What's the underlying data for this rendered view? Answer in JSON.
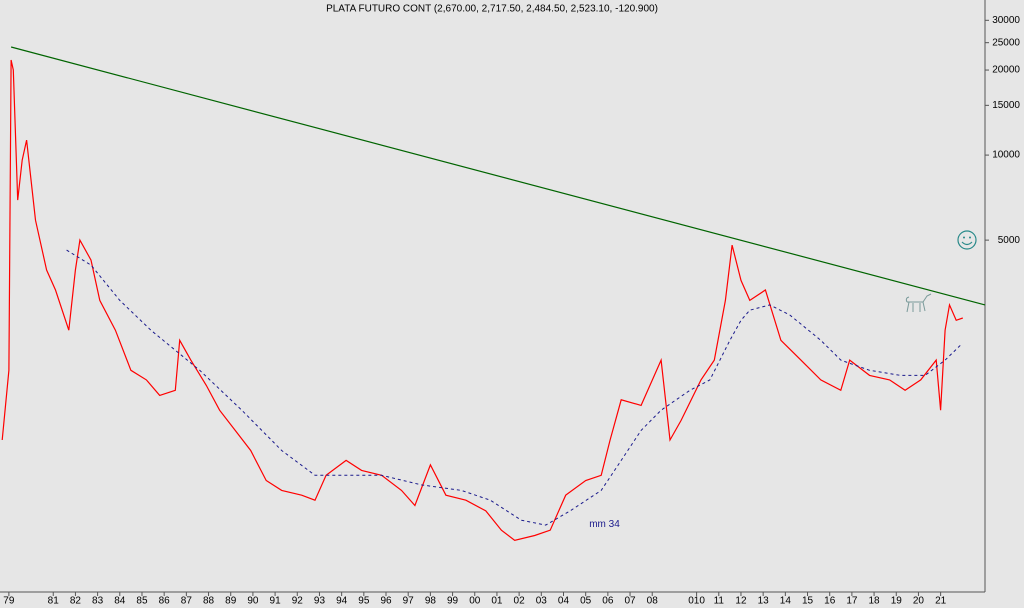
{
  "chart_data": {
    "type": "line",
    "title": "PLATA FUTURO CONT (2,670.00, 2,717.50, 2,484.50, 2,523.10, -120.900)",
    "log_scale": true,
    "grid": false,
    "xlim": [
      1978.6,
      2023.0
    ],
    "ylim": [
      284,
      35400
    ],
    "yticks": [
      5000,
      10000,
      15000,
      20000,
      25000,
      30000
    ],
    "xticks": [
      {
        "value": 1979,
        "label": "79"
      },
      {
        "value": 1981,
        "label": "81"
      },
      {
        "value": 1982,
        "label": "82"
      },
      {
        "value": 1983,
        "label": "83"
      },
      {
        "value": 1984,
        "label": "84"
      },
      {
        "value": 1985,
        "label": "85"
      },
      {
        "value": 1986,
        "label": "86"
      },
      {
        "value": 1987,
        "label": "87"
      },
      {
        "value": 1988,
        "label": "88"
      },
      {
        "value": 1989,
        "label": "89"
      },
      {
        "value": 1990,
        "label": "90"
      },
      {
        "value": 1991,
        "label": "91"
      },
      {
        "value": 1992,
        "label": "92"
      },
      {
        "value": 1993,
        "label": "93"
      },
      {
        "value": 1994,
        "label": "94"
      },
      {
        "value": 1995,
        "label": "95"
      },
      {
        "value": 1996,
        "label": "96"
      },
      {
        "value": 1997,
        "label": "97"
      },
      {
        "value": 1998,
        "label": "98"
      },
      {
        "value": 1999,
        "label": "99"
      },
      {
        "value": 2000,
        "label": "00"
      },
      {
        "value": 2001,
        "label": "01"
      },
      {
        "value": 2002,
        "label": "02"
      },
      {
        "value": 2003,
        "label": "03"
      },
      {
        "value": 2004,
        "label": "04"
      },
      {
        "value": 2005,
        "label": "05"
      },
      {
        "value": 2006,
        "label": "06"
      },
      {
        "value": 2007,
        "label": "07"
      },
      {
        "value": 2008,
        "label": "08"
      },
      {
        "value": 2010,
        "label": "010"
      },
      {
        "value": 2011,
        "label": "11"
      },
      {
        "value": 2012,
        "label": "12"
      },
      {
        "value": 2013,
        "label": "13"
      },
      {
        "value": 2014,
        "label": "14"
      },
      {
        "value": 2015,
        "label": "15"
      },
      {
        "value": 2016,
        "label": "16"
      },
      {
        "value": 2017,
        "label": "17"
      },
      {
        "value": 2018,
        "label": "18"
      },
      {
        "value": 2019,
        "label": "19"
      },
      {
        "value": 2020,
        "label": "20"
      },
      {
        "value": 2021,
        "label": "21"
      }
    ],
    "series": [
      {
        "color": "#ff0000",
        "x": [
          1978.7,
          1979.0,
          1979.1,
          1979.2,
          1979.4,
          1979.6,
          1979.8,
          1980.2,
          1980.7,
          1981.1,
          1981.7,
          1982.0,
          1982.2,
          1982.7,
          1983.1,
          1983.8,
          1984.5,
          1985.2,
          1985.8,
          1986.5,
          1986.7,
          1987.2,
          1987.9,
          1988.5,
          1989.2,
          1989.9,
          1990.6,
          1991.3,
          1992.2,
          1992.8,
          1993.3,
          1994.2,
          1994.9,
          1995.8,
          1996.7,
          1997.3,
          1998.0,
          1998.7,
          1999.6,
          2000.5,
          2001.2,
          2001.8,
          2002.7,
          2003.4,
          2004.1,
          2005.0,
          2005.7,
          2006.1,
          2006.6,
          2007.5,
          2008.4,
          2008.8,
          2009.3,
          2010.2,
          2010.8,
          2011.3,
          2011.6,
          2012.0,
          2012.4,
          2013.1,
          2013.8,
          2014.7,
          2015.6,
          2016.5,
          2016.9,
          2017.8,
          2018.7,
          2019.4,
          2020.1,
          2020.8,
          2021.0,
          2021.2,
          2021.4,
          2021.7,
          2022.0
        ],
        "values": [
          980,
          1730,
          21700,
          20000,
          6930,
          9600,
          11300,
          5880,
          3920,
          3330,
          2400,
          3920,
          5000,
          4250,
          3060,
          2400,
          1730,
          1600,
          1410,
          1470,
          2210,
          1880,
          1530,
          1250,
          1060,
          900,
          705,
          650,
          625,
          600,
          735,
          830,
          765,
          735,
          650,
          575,
          800,
          625,
          600,
          550,
          470,
          433,
          450,
          470,
          625,
          705,
          735,
          980,
          1360,
          1300,
          1880,
          980,
          1150,
          1600,
          1880,
          3060,
          4800,
          3600,
          3060,
          3330,
          2210,
          1880,
          1600,
          1470,
          1880,
          1660,
          1600,
          1470,
          1600,
          1880,
          1250,
          2400,
          2950,
          2600,
          2650
        ]
      },
      {
        "name": "mm 34",
        "color": "#1a1a8c",
        "dashed": true,
        "x": [
          1981.6,
          1982.7,
          1984.0,
          1985.4,
          1987.6,
          1989.5,
          1991.3,
          1992.8,
          1994.0,
          1995.8,
          1997.6,
          1999.4,
          2000.7,
          2002.1,
          2003.2,
          2004.3,
          2005.7,
          2006.6,
          2007.5,
          2008.4,
          2009.7,
          2010.6,
          2011.5,
          2012.0,
          2012.4,
          2013.3,
          2014.2,
          2015.6,
          2016.5,
          2017.8,
          2019.2,
          2020.3,
          2021.2,
          2021.9
        ],
        "values": [
          4610,
          4080,
          3060,
          2400,
          1730,
          1250,
          900,
          735,
          735,
          735,
          680,
          650,
          600,
          510,
          490,
          550,
          650,
          830,
          1060,
          1250,
          1470,
          1600,
          2210,
          2600,
          2825,
          2950,
          2715,
          2210,
          1880,
          1730,
          1660,
          1660,
          1880,
          2125
        ]
      },
      {
        "color": "#006400",
        "x": [
          1979.1,
          2023.0
        ],
        "values": [
          24130,
          2950
        ]
      }
    ]
  }
}
